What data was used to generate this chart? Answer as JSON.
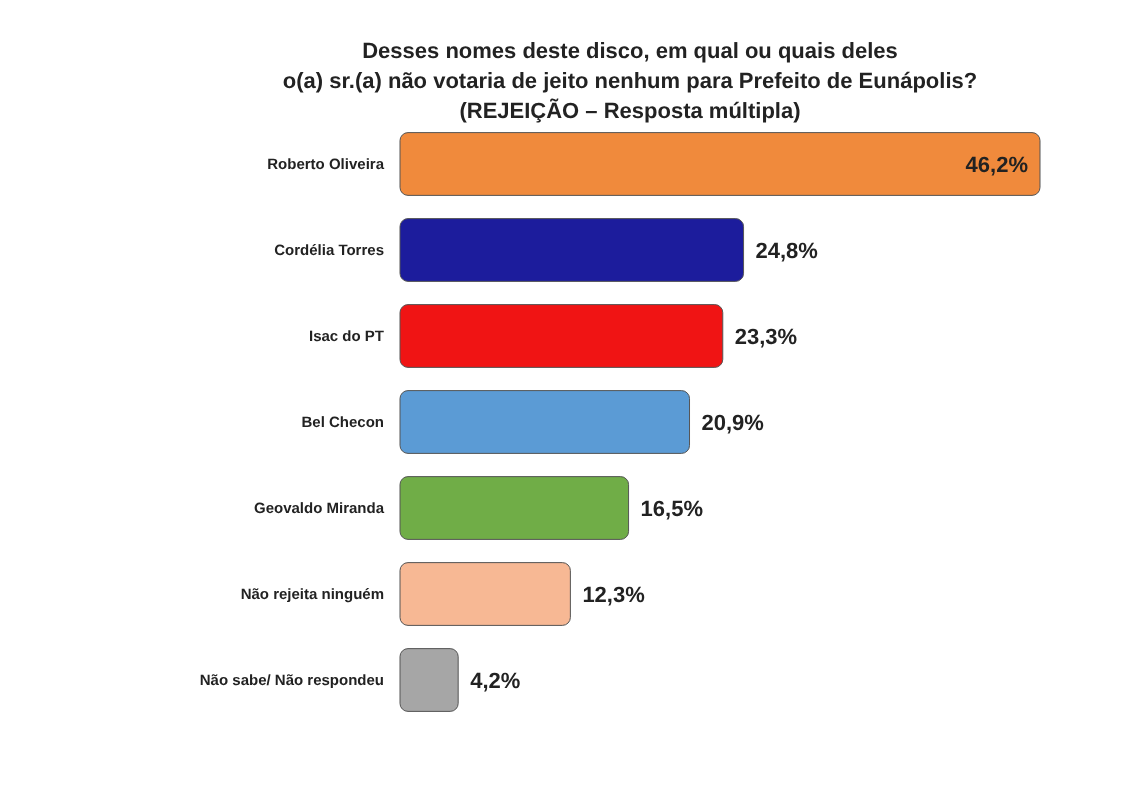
{
  "chart_data": {
    "type": "bar",
    "orientation": "horizontal",
    "title": "Desses nomes deste disco, em qual ou quais deles\no(a) sr.(a) não votaria de jeito nenhum para Prefeito de Eunápolis?",
    "subtitle": "(REJEIÇÃO – Resposta múltipla)",
    "categories": [
      "Roberto Oliveira",
      "Cordélia Torres",
      "Isac do PT",
      "Bel Checon",
      "Geovaldo Miranda",
      "Não rejeita ninguém",
      "Não sabe/ Não respondeu"
    ],
    "values": [
      46.2,
      24.8,
      23.3,
      20.9,
      16.5,
      12.3,
      4.2
    ],
    "colors": [
      "#f08a3c",
      "#1c1c9c",
      "#f01414",
      "#5b9bd5",
      "#70ad47",
      "#f7b894",
      "#a6a6a6"
    ],
    "value_labels": [
      "46,2%",
      "24,8%",
      "23,3%",
      "20,9%",
      "16,5%",
      "12,3%",
      "4,2%"
    ],
    "data_labels": true
  }
}
